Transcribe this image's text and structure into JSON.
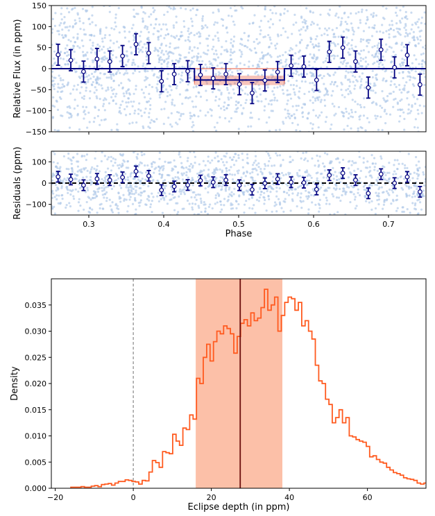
{
  "chart_data": [
    {
      "type": "scatter",
      "panel": "lightcurve",
      "ylabel": "Relative Flux (in ppm)",
      "xlim": [
        0.25,
        0.75
      ],
      "ylim": [
        -150,
        150
      ],
      "yticks": [
        150,
        100,
        50,
        0,
        -50,
        -100,
        -150
      ],
      "raw_points_color": "#aec7e8",
      "binned_color": "#000080",
      "model_color": "#000080",
      "samples_color": "#e8563a",
      "eclipse_start": 0.441,
      "eclipse_end": 0.561,
      "eclipse_depth": -27,
      "binned": {
        "x": [
          0.259,
          0.276,
          0.293,
          0.311,
          0.328,
          0.345,
          0.363,
          0.38,
          0.397,
          0.414,
          0.432,
          0.449,
          0.466,
          0.483,
          0.501,
          0.518,
          0.535,
          0.552,
          0.57,
          0.587,
          0.604,
          0.621,
          0.639,
          0.656,
          0.673,
          0.69,
          0.708,
          0.725,
          0.742
        ],
        "y": [
          33,
          20,
          -7,
          23,
          17,
          30,
          58,
          37,
          -30,
          -13,
          -6,
          -15,
          -23,
          -13,
          -37,
          -58,
          -28,
          -8,
          7,
          5,
          -27,
          40,
          50,
          17,
          -45,
          45,
          3,
          32,
          -38
        ],
        "err": [
          25,
          25,
          25,
          25,
          25,
          25,
          25,
          25,
          25,
          25,
          25,
          25,
          25,
          25,
          25,
          25,
          25,
          25,
          25,
          25,
          25,
          25,
          25,
          25,
          25,
          25,
          25,
          25,
          25
        ]
      }
    },
    {
      "type": "scatter",
      "panel": "residuals",
      "xlabel": "Phase",
      "ylabel": "Residuals (ppm)",
      "xlim": [
        0.25,
        0.75
      ],
      "ylim": [
        -150,
        150
      ],
      "yticks": [
        100,
        0,
        -100
      ],
      "xticks": [
        0.3,
        0.4,
        0.5,
        0.6,
        0.7
      ],
      "zero_line": "dashed",
      "binned": {
        "x": [
          0.259,
          0.276,
          0.293,
          0.311,
          0.328,
          0.345,
          0.363,
          0.38,
          0.397,
          0.414,
          0.432,
          0.449,
          0.466,
          0.483,
          0.501,
          0.518,
          0.535,
          0.552,
          0.57,
          0.587,
          0.604,
          0.621,
          0.639,
          0.656,
          0.673,
          0.69,
          0.708,
          0.725,
          0.742
        ],
        "y": [
          30,
          17,
          -10,
          20,
          14,
          27,
          55,
          34,
          -33,
          -16,
          -9,
          12,
          4,
          14,
          -10,
          -31,
          -1,
          19,
          4,
          2,
          -30,
          37,
          47,
          14,
          -48,
          42,
          0,
          29,
          -41
        ],
        "err": [
          25,
          25,
          25,
          25,
          25,
          25,
          25,
          25,
          25,
          25,
          25,
          25,
          25,
          25,
          25,
          25,
          25,
          25,
          25,
          25,
          25,
          25,
          25,
          25,
          25,
          25,
          25,
          25,
          25
        ]
      }
    },
    {
      "type": "histogram",
      "panel": "posterior",
      "xlabel": "Eclipse depth (in ppm)",
      "ylabel": "Density",
      "xlim": [
        -21,
        75
      ],
      "ylim": [
        0,
        0.04
      ],
      "xticks": [
        -20,
        0,
        20,
        40,
        60
      ],
      "yticks": [
        0.0,
        0.005,
        0.01,
        0.015,
        0.02,
        0.025,
        0.03,
        0.035
      ],
      "color": "#ff5a1f",
      "band_color": "#fcc0a8",
      "band": [
        16,
        38.2
      ],
      "median": 27.4,
      "median_color": "#6b0d0d",
      "zero_line": 0,
      "bin_start": -16,
      "bin_width": 0.87,
      "densities": [
        0.0002,
        0.0002,
        0.0002,
        0.0003,
        0.0002,
        0.0002,
        0.0004,
        0.0005,
        0.0003,
        0.0007,
        0.0008,
        0.0009,
        0.0006,
        0.001,
        0.0013,
        0.0013,
        0.0016,
        0.0015,
        0.0013,
        0.0012,
        0.0008,
        0.0015,
        0.0014,
        0.0031,
        0.0053,
        0.0049,
        0.004,
        0.007,
        0.0068,
        0.0066,
        0.0103,
        0.009,
        0.0082,
        0.0115,
        0.0112,
        0.014,
        0.0132,
        0.021,
        0.02,
        0.025,
        0.0275,
        0.0243,
        0.028,
        0.03,
        0.0295,
        0.031,
        0.0305,
        0.0295,
        0.0258,
        0.029,
        0.0315,
        0.0322,
        0.031,
        0.0335,
        0.032,
        0.0325,
        0.0345,
        0.038,
        0.034,
        0.035,
        0.0365,
        0.03,
        0.033,
        0.0355,
        0.0365,
        0.0362,
        0.034,
        0.0355,
        0.031,
        0.032,
        0.03,
        0.0285,
        0.0235,
        0.0205,
        0.02,
        0.017,
        0.016,
        0.0125,
        0.0135,
        0.015,
        0.0125,
        0.0135,
        0.01,
        0.0098,
        0.0093,
        0.009,
        0.0088,
        0.008,
        0.006,
        0.0062,
        0.0055,
        0.005,
        0.0048,
        0.004,
        0.0035,
        0.003,
        0.0028,
        0.0025,
        0.002,
        0.0018,
        0.0017,
        0.0015,
        0.001,
        0.0008,
        0.001,
        0.0007,
        0.0006,
        0.0005,
        0.0006,
        0.0004,
        0.0003,
        0.0003,
        0.0002,
        0.0003,
        0.0002,
        0.0002,
        0.0002,
        0.0001
      ]
    }
  ]
}
